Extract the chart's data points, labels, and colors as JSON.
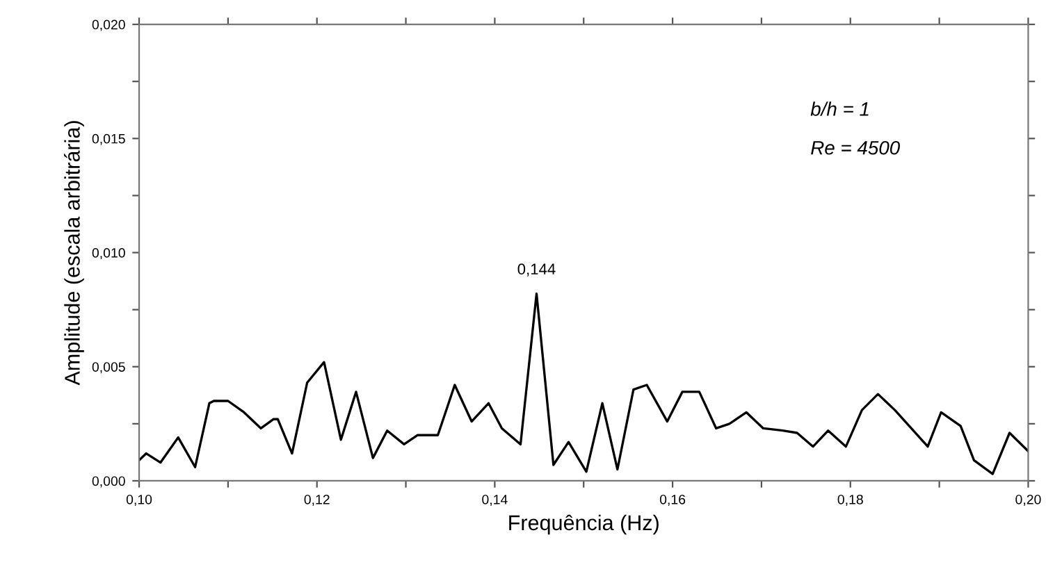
{
  "chart_data": {
    "type": "line",
    "xlabel": "Frequência (Hz)",
    "ylabel": "Amplitude (escala arbitrária)",
    "x": [
      0.1,
      0.1008,
      0.1024,
      0.1044,
      0.1063,
      0.1079,
      0.1084,
      0.11,
      0.1118,
      0.1137,
      0.1151,
      0.1156,
      0.1172,
      0.1189,
      0.1208,
      0.1227,
      0.1244,
      0.1263,
      0.1279,
      0.1298,
      0.1313,
      0.1336,
      0.1355,
      0.1374,
      0.1393,
      0.1408,
      0.1429,
      0.1447,
      0.1466,
      0.1483,
      0.1503,
      0.1521,
      0.1538,
      0.1556,
      0.1571,
      0.1594,
      0.1611,
      0.163,
      0.1649,
      0.1664,
      0.1683,
      0.1702,
      0.1724,
      0.174,
      0.1758,
      0.1775,
      0.1795,
      0.1813,
      0.1831,
      0.185,
      0.1887,
      0.1902,
      0.1924,
      0.1939,
      0.196,
      0.1979,
      0.2
    ],
    "series": [
      {
        "color": "#000000",
        "values": [
          0.0009,
          0.0012,
          0.0008,
          0.0019,
          0.0006,
          0.0034,
          0.0035,
          0.0035,
          0.003,
          0.0023,
          0.0027,
          0.0027,
          0.0012,
          0.0043,
          0.0052,
          0.0018,
          0.0039,
          0.001,
          0.0022,
          0.0016,
          0.002,
          0.002,
          0.0042,
          0.0026,
          0.0034,
          0.0023,
          0.0016,
          0.0082,
          0.0007,
          0.0017,
          0.0004,
          0.0034,
          0.0005,
          0.004,
          0.0042,
          0.0026,
          0.0039,
          0.0039,
          0.0023,
          0.0025,
          0.003,
          0.0023,
          0.0022,
          0.0021,
          0.0015,
          0.0022,
          0.0015,
          0.0031,
          0.0038,
          0.0031,
          0.0015,
          0.003,
          0.0024,
          0.0009,
          0.0003,
          0.0021,
          0.0013
        ]
      }
    ],
    "xlim": [
      0.1,
      0.2
    ],
    "xticks": [
      {
        "value": 0.1,
        "label": "0,10"
      },
      {
        "value": 0.11,
        "label": null
      },
      {
        "value": 0.12,
        "label": "0,12"
      },
      {
        "value": 0.13,
        "label": null
      },
      {
        "value": 0.14,
        "label": "0,14"
      },
      {
        "value": 0.15,
        "label": null
      },
      {
        "value": 0.16,
        "label": "0,16"
      },
      {
        "value": 0.17,
        "label": null
      },
      {
        "value": 0.18,
        "label": "0,18"
      },
      {
        "value": 0.19,
        "label": null
      },
      {
        "value": 0.2,
        "label": "0,20"
      }
    ],
    "ylim": [
      0.0,
      0.02
    ],
    "yticks": [
      {
        "value": 0.0,
        "label": "0,000"
      },
      {
        "value": 0.0025,
        "label": null
      },
      {
        "value": 0.005,
        "label": "0,005"
      },
      {
        "value": 0.0075,
        "label": null
      },
      {
        "value": 0.01,
        "label": "0,010"
      },
      {
        "value": 0.0125,
        "label": null
      },
      {
        "value": 0.015,
        "label": "0,015"
      },
      {
        "value": 0.0175,
        "label": null
      },
      {
        "value": 0.02,
        "label": "0,020"
      }
    ],
    "annotations": [
      {
        "text": "0,144",
        "x": 0.1447,
        "y": 0.0082
      },
      "b/h = 1",
      "Re = 4500"
    ],
    "grid": false,
    "legend": false,
    "marker": "none",
    "line_style": "solid"
  }
}
